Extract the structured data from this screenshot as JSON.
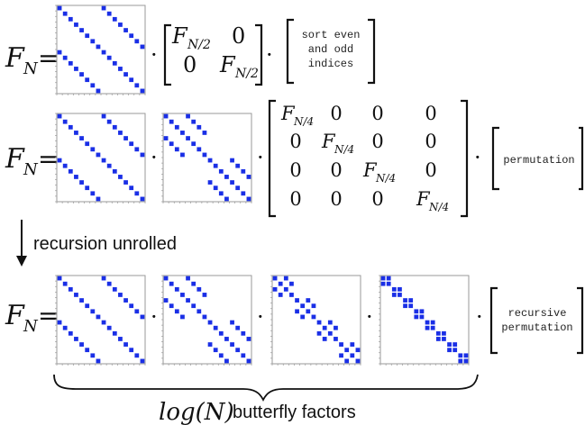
{
  "colors": {
    "matrix_cell": "#1a2fe6",
    "matrix_frame": "#9a9a9a",
    "text": "#111111"
  },
  "lhs": {
    "F": "F",
    "sub": "N",
    "eq": "="
  },
  "dot": "·",
  "row1": {
    "block": {
      "tl": "F",
      "tl_sub": "N/2",
      "tr": "0",
      "bl": "0",
      "br": "F",
      "br_sub": "N/2"
    },
    "sort_lines": [
      "sort even",
      "and odd",
      "indices"
    ]
  },
  "row2": {
    "block_entries": [
      [
        "F_N/4",
        "0",
        "0",
        "0"
      ],
      [
        "0",
        "F_N/4",
        "0",
        "0"
      ],
      [
        "0",
        "0",
        "F_N/4",
        "0"
      ],
      [
        "0",
        "0",
        "0",
        "F_N/4"
      ]
    ],
    "zero": "0",
    "F": "F",
    "sub": "N/4",
    "permutation": "permutation"
  },
  "arrow_label": "recursion unrolled",
  "row3": {
    "recursive_lines": [
      "recursive",
      "permutation"
    ]
  },
  "footer": {
    "log_text": "log(N)",
    "rest_text": "butterfly factors"
  },
  "matrices": {
    "size": 16,
    "butterfly_16": {
      "block": 16
    },
    "butterfly_8": {
      "block": 8
    },
    "butterfly_4": {
      "block": 4
    },
    "butterfly_2": {
      "block": 2
    }
  }
}
